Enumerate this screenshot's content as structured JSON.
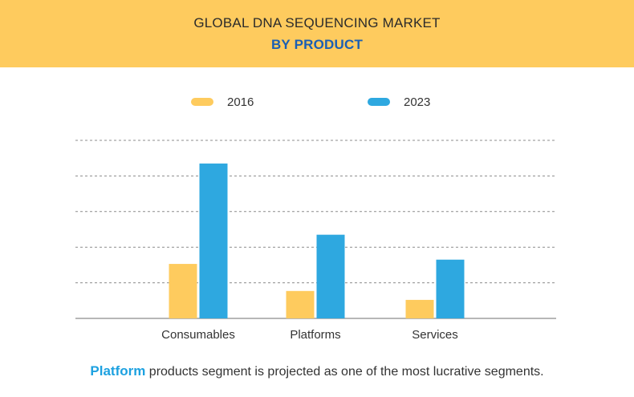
{
  "header": {
    "title": "GLOBAL DNA SEQUENCING MARKET",
    "subtitle": "BY PRODUCT"
  },
  "colors": {
    "banner": "#fecb5e",
    "series_2016": "#fecb5e",
    "series_2023": "#2ea8e0",
    "subtitle": "#1a5fb4",
    "highlight": "#1da1e0"
  },
  "chart_data": {
    "type": "bar",
    "title": "",
    "xlabel": "",
    "ylabel": "",
    "categories": [
      "Consumables",
      "Platforms",
      "Services"
    ],
    "series": [
      {
        "name": "2016",
        "values": [
          1.53,
          0.77,
          0.52
        ]
      },
      {
        "name": "2023",
        "values": [
          4.35,
          2.35,
          1.65
        ]
      }
    ],
    "ylim": [
      0,
      5
    ],
    "grid": true,
    "legend": "top-center"
  },
  "footer": {
    "highlight": "Platform",
    "text": " products segment is projected as one of the most lucrative segments."
  }
}
